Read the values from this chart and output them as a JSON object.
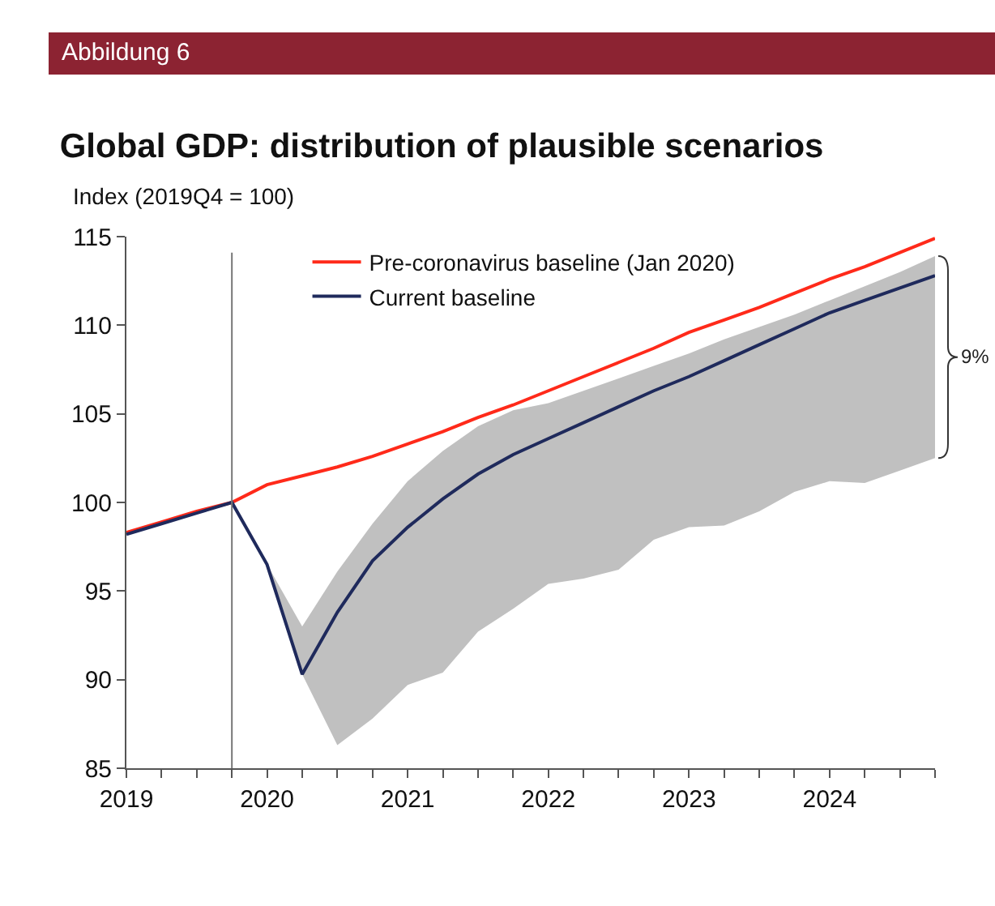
{
  "chart_data": {
    "type": "line",
    "title": "Global GDP: distribution of plausible scenarios",
    "ylabel": "Index (2019Q4 = 100)",
    "annotations": [
      "Abbildung 6",
      {
        "text": "9%",
        "x": 2024.75,
        "y": 108.2
      }
    ],
    "x": [
      2019,
      2019.25,
      2019.5,
      2019.75,
      2020,
      2020.25,
      2020.5,
      2020.75,
      2021,
      2021.25,
      2021.5,
      2021.75,
      2022,
      2022.25,
      2022.5,
      2022.75,
      2023,
      2023.25,
      2023.5,
      2023.75,
      2024,
      2024.25,
      2024.5,
      2024.75
    ],
    "series": [
      {
        "name": "Pre-coronavirus baseline (Jan 2020)",
        "color": "#ff2a1a",
        "values": [
          98.3,
          98.9,
          99.5,
          100,
          101.0,
          101.5,
          102.0,
          102.6,
          103.3,
          104.0,
          104.8,
          105.5,
          106.3,
          107.1,
          107.9,
          108.7,
          109.6,
          110.3,
          111.0,
          111.8,
          112.6,
          113.3,
          114.1,
          114.9
        ]
      },
      {
        "name": "Current baseline",
        "color": "#1f2a5c",
        "values": [
          98.2,
          98.8,
          99.4,
          100,
          96.5,
          90.3,
          93.8,
          96.7,
          98.6,
          100.2,
          101.6,
          102.7,
          103.6,
          104.5,
          105.4,
          106.3,
          107.1,
          108.0,
          108.9,
          109.8,
          110.7,
          111.4,
          112.1,
          112.8
        ],
        "lower": [
          null,
          null,
          null,
          null,
          96.5,
          90.3,
          86.3,
          87.8,
          89.7,
          90.4,
          92.7,
          94.0,
          95.4,
          95.7,
          96.2,
          97.9,
          98.6,
          98.7,
          99.5,
          100.6,
          101.2,
          101.1,
          101.8,
          102.5
        ],
        "upper": [
          null,
          null,
          null,
          null,
          96.5,
          93.0,
          96.1,
          98.8,
          101.2,
          102.9,
          104.3,
          105.2,
          105.6,
          106.3,
          107.0,
          107.7,
          108.4,
          109.2,
          109.9,
          110.6,
          111.4,
          112.2,
          113.0,
          113.9
        ]
      }
    ],
    "xlim": [
      2019,
      2024.75
    ],
    "xticks": [
      {
        "value": 2019,
        "label": "2019"
      },
      {
        "value": 2019.25,
        "label": null
      },
      {
        "value": 2019.5,
        "label": null
      },
      {
        "value": 2019.75,
        "label": null
      },
      {
        "value": 2020,
        "label": "2020"
      },
      {
        "value": 2020.25,
        "label": null
      },
      {
        "value": 2020.5,
        "label": null
      },
      {
        "value": 2020.75,
        "label": null
      },
      {
        "value": 2021,
        "label": "2021"
      },
      {
        "value": 2021.25,
        "label": null
      },
      {
        "value": 2021.5,
        "label": null
      },
      {
        "value": 2021.75,
        "label": null
      },
      {
        "value": 2022,
        "label": "2022"
      },
      {
        "value": 2022.25,
        "label": null
      },
      {
        "value": 2022.5,
        "label": null
      },
      {
        "value": 2022.75,
        "label": null
      },
      {
        "value": 2023,
        "label": "2023"
      },
      {
        "value": 2023.25,
        "label": null
      },
      {
        "value": 2023.5,
        "label": null
      },
      {
        "value": 2023.75,
        "label": null
      },
      {
        "value": 2024,
        "label": "2024"
      },
      {
        "value": 2024.25,
        "label": null
      },
      {
        "value": 2024.5,
        "label": null
      },
      {
        "value": 2024.75,
        "label": null
      }
    ],
    "ylim": [
      85,
      115
    ],
    "yticks": [
      85,
      90,
      95,
      100,
      105,
      110,
      115
    ],
    "ref_lines": [
      {
        "axis": "x",
        "value": 2019.75,
        "label": null,
        "color": "#777777"
      }
    ],
    "grid": false,
    "legend": "top left",
    "marker": "none",
    "line_style": "solid"
  }
}
